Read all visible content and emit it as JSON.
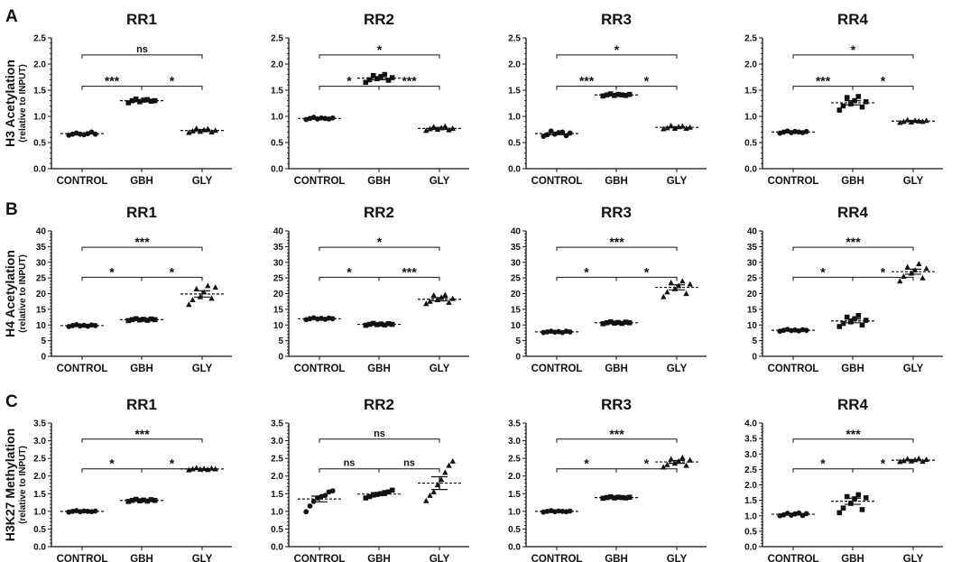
{
  "rows": [
    {
      "label": "A",
      "ylabel": "H3 Acetylation",
      "ylabel_sub": "(relative to INPUT)",
      "panels": [
        {
          "title": "RR1",
          "ylim": [
            0,
            2.5
          ],
          "step": 0.5,
          "decimals": 1,
          "categories": [
            "CONTROL",
            "GBH",
            "GLY"
          ],
          "means": [
            0.67,
            1.3,
            0.73
          ],
          "sem": [
            0.01,
            0.02,
            0.02
          ],
          "points": [
            [
              0.64,
              0.66,
              0.68,
              0.66,
              0.65,
              0.67,
              0.7,
              0.66
            ],
            [
              1.26,
              1.3,
              1.33,
              1.28,
              1.31,
              1.32,
              1.29,
              1.3
            ],
            [
              0.69,
              0.72,
              0.77,
              0.71,
              0.74,
              0.76,
              0.7,
              0.73
            ]
          ],
          "comparisons": [
            {
              "from": 0,
              "to": 1,
              "level": 1,
              "label": "***"
            },
            {
              "from": 1,
              "to": 2,
              "level": 1,
              "label": "*"
            },
            {
              "from": 0,
              "to": 2,
              "level": 2,
              "label": "ns"
            }
          ]
        },
        {
          "title": "RR2",
          "ylim": [
            0,
            2.5
          ],
          "step": 0.5,
          "decimals": 1,
          "categories": [
            "CONTROL",
            "GBH",
            "GLY"
          ],
          "means": [
            0.96,
            1.73,
            0.77
          ],
          "sem": [
            0.01,
            0.03,
            0.02
          ],
          "points": [
            [
              0.94,
              0.96,
              0.98,
              0.95,
              0.97,
              0.96,
              0.95,
              0.97
            ],
            [
              1.65,
              1.7,
              1.78,
              1.72,
              1.76,
              1.8,
              1.69,
              1.74
            ],
            [
              0.73,
              0.76,
              0.8,
              0.75,
              0.78,
              0.81,
              0.74,
              0.77
            ]
          ],
          "comparisons": [
            {
              "from": 0,
              "to": 1,
              "level": 1,
              "label": "*"
            },
            {
              "from": 1,
              "to": 2,
              "level": 1,
              "label": "***"
            },
            {
              "from": 0,
              "to": 2,
              "level": 2,
              "label": "*"
            }
          ]
        },
        {
          "title": "RR3",
          "ylim": [
            0,
            2.5
          ],
          "step": 0.5,
          "decimals": 1,
          "categories": [
            "CONTROL",
            "GBH",
            "GLY"
          ],
          "means": [
            0.67,
            1.41,
            0.79
          ],
          "sem": [
            0.02,
            0.01,
            0.01
          ],
          "points": [
            [
              0.62,
              0.65,
              0.72,
              0.66,
              0.69,
              0.7,
              0.63,
              0.68
            ],
            [
              1.39,
              1.41,
              1.43,
              1.4,
              1.42,
              1.41,
              1.4,
              1.42
            ],
            [
              0.76,
              0.78,
              0.82,
              0.77,
              0.8,
              0.81,
              0.77,
              0.79
            ]
          ],
          "comparisons": [
            {
              "from": 0,
              "to": 1,
              "level": 1,
              "label": "***"
            },
            {
              "from": 1,
              "to": 2,
              "level": 1,
              "label": "*"
            },
            {
              "from": 0,
              "to": 2,
              "level": 2,
              "label": "*"
            }
          ]
        },
        {
          "title": "RR4",
          "ylim": [
            0,
            2.5
          ],
          "step": 0.5,
          "decimals": 1,
          "categories": [
            "CONTROL",
            "GBH",
            "GLY"
          ],
          "means": [
            0.7,
            1.26,
            0.91
          ],
          "sem": [
            0.01,
            0.04,
            0.01
          ],
          "points": [
            [
              0.68,
              0.7,
              0.72,
              0.69,
              0.71,
              0.7,
              0.69,
              0.71
            ],
            [
              1.12,
              1.2,
              1.36,
              1.24,
              1.3,
              1.38,
              1.18,
              1.28
            ],
            [
              0.88,
              0.9,
              0.93,
              0.89,
              0.92,
              0.91,
              0.9,
              0.92
            ]
          ],
          "comparisons": [
            {
              "from": 0,
              "to": 1,
              "level": 1,
              "label": "***"
            },
            {
              "from": 1,
              "to": 2,
              "level": 1,
              "label": "*"
            },
            {
              "from": 0,
              "to": 2,
              "level": 2,
              "label": "*"
            }
          ]
        }
      ]
    },
    {
      "label": "B",
      "ylabel": "H4 Acetylation",
      "ylabel_sub": "(relative to INPUT)",
      "panels": [
        {
          "title": "RR1",
          "ylim": [
            0,
            40
          ],
          "step": 5,
          "decimals": 0,
          "categories": [
            "CONTROL",
            "GBH",
            "GLY"
          ],
          "means": [
            9.8,
            11.7,
            19.9
          ],
          "sem": [
            0.1,
            0.1,
            1.0
          ],
          "points": [
            [
              9.5,
              9.8,
              10.1,
              9.7,
              9.9,
              9.6,
              10.0,
              9.8
            ],
            [
              11.4,
              11.7,
              12.0,
              11.6,
              11.8,
              11.5,
              11.9,
              11.7
            ],
            [
              16.5,
              18.0,
              21.5,
              19.0,
              20.5,
              22.5,
              18.5,
              22.0
            ]
          ],
          "comparisons": [
            {
              "from": 0,
              "to": 1,
              "level": 1,
              "label": "*"
            },
            {
              "from": 1,
              "to": 2,
              "level": 1,
              "label": "*"
            },
            {
              "from": 0,
              "to": 2,
              "level": 2,
              "label": "***"
            }
          ]
        },
        {
          "title": "RR2",
          "ylim": [
            0,
            40
          ],
          "step": 5,
          "decimals": 0,
          "categories": [
            "CONTROL",
            "GBH",
            "GLY"
          ],
          "means": [
            12.0,
            10.2,
            18.2
          ],
          "sem": [
            0.1,
            0.1,
            0.5
          ],
          "points": [
            [
              11.7,
              12.0,
              12.3,
              11.9,
              12.1,
              11.8,
              12.2,
              12.0
            ],
            [
              9.9,
              10.2,
              10.5,
              10.1,
              10.3,
              10.0,
              10.4,
              10.2
            ],
            [
              16.8,
              17.5,
              19.5,
              18.0,
              18.8,
              19.6,
              17.2,
              18.4
            ]
          ],
          "comparisons": [
            {
              "from": 0,
              "to": 1,
              "level": 1,
              "label": "*"
            },
            {
              "from": 1,
              "to": 2,
              "level": 1,
              "label": "***"
            },
            {
              "from": 0,
              "to": 2,
              "level": 2,
              "label": "*"
            }
          ]
        },
        {
          "title": "RR3",
          "ylim": [
            0,
            40
          ],
          "step": 5,
          "decimals": 0,
          "categories": [
            "CONTROL",
            "GBH",
            "GLY"
          ],
          "means": [
            7.8,
            10.7,
            22.0
          ],
          "sem": [
            0.1,
            0.1,
            0.8
          ],
          "points": [
            [
              7.6,
              7.8,
              8.0,
              7.7,
              7.9,
              7.6,
              8.0,
              7.8
            ],
            [
              10.4,
              10.7,
              11.0,
              10.6,
              10.8,
              10.5,
              10.9,
              10.7
            ],
            [
              19.0,
              20.5,
              23.5,
              21.5,
              22.5,
              24.0,
              20.0,
              23.0
            ]
          ],
          "comparisons": [
            {
              "from": 0,
              "to": 1,
              "level": 1,
              "label": "*"
            },
            {
              "from": 1,
              "to": 2,
              "level": 1,
              "label": "*"
            },
            {
              "from": 0,
              "to": 2,
              "level": 2,
              "label": "***"
            }
          ]
        },
        {
          "title": "RR4",
          "ylim": [
            0,
            40
          ],
          "step": 5,
          "decimals": 0,
          "categories": [
            "CONTROL",
            "GBH",
            "GLY"
          ],
          "means": [
            8.3,
            11.3,
            27.0
          ],
          "sem": [
            0.1,
            0.6,
            0.8
          ],
          "points": [
            [
              8.0,
              8.3,
              8.6,
              8.2,
              8.4,
              8.1,
              8.5,
              8.3
            ],
            [
              9.5,
              10.5,
              12.5,
              11.0,
              12.0,
              13.0,
              10.0,
              11.5
            ],
            [
              24.0,
              25.5,
              28.5,
              26.5,
              27.5,
              29.5,
              25.0,
              28.0
            ]
          ],
          "comparisons": [
            {
              "from": 0,
              "to": 1,
              "level": 1,
              "label": "*"
            },
            {
              "from": 1,
              "to": 2,
              "level": 1,
              "label": "*"
            },
            {
              "from": 0,
              "to": 2,
              "level": 2,
              "label": "***"
            }
          ]
        }
      ]
    },
    {
      "label": "C",
      "ylabel": "H3K27 Methylation",
      "ylabel_sub": "(relative to INPUT)",
      "panels": [
        {
          "title": "RR1",
          "ylim": [
            0,
            3.5
          ],
          "step": 0.5,
          "decimals": 1,
          "categories": [
            "CONTROL",
            "GBH",
            "GLY"
          ],
          "means": [
            1.0,
            1.31,
            2.2
          ],
          "sem": [
            0.01,
            0.01,
            0.01
          ],
          "points": [
            [
              0.98,
              1.0,
              1.02,
              0.99,
              1.01,
              1.0,
              0.99,
              1.01
            ],
            [
              1.28,
              1.31,
              1.34,
              1.3,
              1.32,
              1.29,
              1.33,
              1.31
            ],
            [
              2.17,
              2.2,
              2.23,
              2.19,
              2.21,
              2.18,
              2.22,
              2.2
            ]
          ],
          "comparisons": [
            {
              "from": 0,
              "to": 1,
              "level": 1,
              "label": "*"
            },
            {
              "from": 1,
              "to": 2,
              "level": 1,
              "label": "*"
            },
            {
              "from": 0,
              "to": 2,
              "level": 2,
              "label": "***"
            }
          ]
        },
        {
          "title": "RR2",
          "ylim": [
            0,
            3.5
          ],
          "step": 0.5,
          "decimals": 1,
          "categories": [
            "CONTROL",
            "GBH",
            "GLY"
          ],
          "means": [
            1.35,
            1.49,
            1.8
          ],
          "sem": [
            0.08,
            0.04,
            0.18
          ],
          "points": [
            [
              0.99,
              1.15,
              1.28,
              1.38,
              1.42,
              1.45,
              1.55,
              1.58
            ],
            [
              1.38,
              1.42,
              1.46,
              1.48,
              1.5,
              1.53,
              1.55,
              1.6
            ],
            [
              1.3,
              1.45,
              1.55,
              1.75,
              1.9,
              2.1,
              2.3,
              2.42
            ]
          ],
          "comparisons": [
            {
              "from": 0,
              "to": 1,
              "level": 1,
              "label": "ns"
            },
            {
              "from": 1,
              "to": 2,
              "level": 1,
              "label": "ns"
            },
            {
              "from": 0,
              "to": 2,
              "level": 2,
              "label": "ns"
            }
          ]
        },
        {
          "title": "RR3",
          "ylim": [
            0,
            3.5
          ],
          "step": 0.5,
          "decimals": 1,
          "categories": [
            "CONTROL",
            "GBH",
            "GLY"
          ],
          "means": [
            1.0,
            1.39,
            2.4
          ],
          "sem": [
            0.01,
            0.01,
            0.04
          ],
          "points": [
            [
              0.98,
              1.0,
              1.02,
              0.99,
              1.01,
              1.0,
              0.99,
              1.01
            ],
            [
              1.37,
              1.39,
              1.41,
              1.38,
              1.4,
              1.39,
              1.38,
              1.4
            ],
            [
              2.25,
              2.32,
              2.48,
              2.36,
              2.42,
              2.52,
              2.3,
              2.45
            ]
          ],
          "comparisons": [
            {
              "from": 0,
              "to": 1,
              "level": 1,
              "label": "*"
            },
            {
              "from": 1,
              "to": 2,
              "level": 1,
              "label": "*"
            },
            {
              "from": 0,
              "to": 2,
              "level": 2,
              "label": "***"
            }
          ]
        },
        {
          "title": "RR4",
          "ylim": [
            0,
            4.0
          ],
          "step": 0.5,
          "decimals": 1,
          "categories": [
            "CONTROL",
            "GBH",
            "GLY"
          ],
          "means": [
            1.05,
            1.47,
            2.8
          ],
          "sem": [
            0.02,
            0.1,
            0.02
          ],
          "points": [
            [
              1.0,
              1.03,
              1.08,
              1.02,
              1.06,
              1.09,
              1.01,
              1.07
            ],
            [
              1.1,
              1.25,
              1.62,
              1.4,
              1.55,
              1.68,
              1.2,
              1.58
            ],
            [
              2.75,
              2.78,
              2.84,
              2.77,
              2.81,
              2.85,
              2.76,
              2.82
            ]
          ],
          "comparisons": [
            {
              "from": 0,
              "to": 1,
              "level": 1,
              "label": "*"
            },
            {
              "from": 1,
              "to": 2,
              "level": 1,
              "label": "*"
            },
            {
              "from": 0,
              "to": 2,
              "level": 2,
              "label": "***"
            }
          ]
        }
      ]
    }
  ],
  "marker_shapes": [
    "circle",
    "square",
    "triangle"
  ],
  "colors": {
    "ink": "#111111"
  }
}
